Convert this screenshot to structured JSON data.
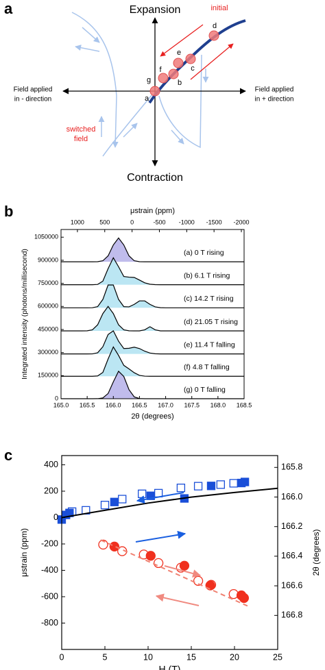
{
  "chart_data": [
    {
      "type": "schematic",
      "panel_label": "a",
      "top_label": "Expansion",
      "bottom_label": "Contraction",
      "left_label": [
        "Field applied",
        "in - direction"
      ],
      "right_label": [
        "Field applied",
        "in + direction"
      ],
      "initial_label": "initial",
      "switched_label": [
        "switched",
        "field"
      ],
      "points": [
        "a",
        "b",
        "c",
        "d",
        "e",
        "f",
        "g"
      ]
    },
    {
      "type": "profiles",
      "panel_label": "b",
      "xlabel": "2θ (degrees)",
      "x2label": "μstrain (ppm)",
      "ylabel": "Integrated intensity (photons/millisecond)",
      "xlim": [
        165,
        168.5
      ],
      "ylim": [
        0,
        1100000
      ],
      "x2lim": [
        1300,
        -2050
      ],
      "xticks": [
        {
          "value": 165,
          "label": "165.0"
        },
        165.5,
        {
          "value": 166,
          "label": "166.0"
        },
        166.5,
        {
          "value": 167,
          "label": "167.0"
        },
        167.5,
        {
          "value": 168,
          "label": "168.0"
        },
        168.5
      ],
      "x2ticks": [
        1000,
        500,
        0,
        -500,
        -1000,
        -1500,
        -2000
      ],
      "yticks": [
        0,
        150000,
        300000,
        450000,
        600000,
        750000,
        900000,
        1050000
      ],
      "x": [
        165.0,
        165.4,
        165.5,
        165.6,
        165.7,
        165.8,
        165.9,
        166.0,
        166.1,
        166.2,
        166.3,
        166.4,
        166.5,
        166.6,
        166.7,
        166.8,
        166.9,
        167.0,
        168.5
      ],
      "series": [
        {
          "name": "(a) 0 T rising",
          "color": "#000000",
          "fill": "#b9b5ea",
          "values": [
            890000,
            890000,
            890000,
            890000,
            890600,
            896800,
            928600,
            999600,
            1045000,
            999600,
            928600,
            896800,
            890600,
            890000,
            890000,
            890000,
            890000,
            890000,
            890000
          ]
        },
        {
          "name": "(b) 6.1 T rising",
          "color": "#000000",
          "fill": "#b4e3f2",
          "values": [
            741000,
            741000,
            741000,
            741000,
            742900,
            764200,
            845400,
            916300,
            857900,
            794600,
            790200,
            788300,
            771400,
            753500,
            744300,
            741600,
            741000,
            741000,
            741000
          ]
        },
        {
          "name": "(c) 14.2 T rising",
          "color": "#000000",
          "fill": "#b4e3f2",
          "values": [
            591000,
            591000,
            591000,
            591400,
            598400,
            645600,
            739200,
            739200,
            645600,
            598400,
            597000,
            613400,
            635900,
            635900,
            613400,
            597000,
            591700,
            591000,
            591000
          ]
        },
        {
          "name": "(d) 21.05 T rising",
          "color": "#000000",
          "fill": "#b4e3f2",
          "values": [
            441000,
            441000,
            441600,
            448000,
            480600,
            553400,
            600000,
            553400,
            480600,
            448000,
            441600,
            441000,
            441000,
            447800,
            468000,
            447800,
            441000,
            441000,
            441000
          ]
        },
        {
          "name": "(e) 11.4 T falling",
          "color": "#000000",
          "fill": "#b4e3f2",
          "values": [
            291000,
            291000,
            291000,
            291500,
            298600,
            338000,
            417500,
            441600,
            373900,
            326400,
            327900,
            335000,
            326200,
            309000,
            296900,
            292300,
            291000,
            291000,
            291000
          ]
        },
        {
          "name": "(f) 4.8 T falling",
          "color": "#000000",
          "fill": "#b4e3f2",
          "values": [
            146000,
            146000,
            146000,
            146000,
            148000,
            171000,
            258300,
            336700,
            281200,
            216900,
            193900,
            168900,
            151700,
            146700,
            146000,
            146000,
            146000,
            146000,
            146000
          ]
        },
        {
          "name": "(g) 0 T falling",
          "color": "#000000",
          "fill": "#b9b5ea",
          "values": [
            0,
            0,
            0,
            0,
            400,
            5200,
            33700,
            109900,
            178500,
            144800,
            58800,
            11900,
            1200,
            0,
            0,
            0,
            0,
            0,
            0
          ]
        }
      ]
    },
    {
      "type": "scatter",
      "panel_label": "c",
      "xlabel": "H (T)",
      "ylabel": "μstrain (ppm)",
      "y2label": "2θ (degrees)",
      "xlim": [
        0,
        25
      ],
      "ylim": [
        -1000,
        470
      ],
      "y2lim": [
        167.03,
        165.72
      ],
      "xticks": [
        0,
        5,
        10,
        15,
        20,
        25
      ],
      "yticks": [
        400,
        200,
        0,
        -200,
        -400,
        -600,
        -800
      ],
      "y2ticks": [
        165.8,
        {
          "value": 166,
          "label": "166.0"
        },
        166.2,
        166.4,
        166.6,
        166.8
      ],
      "series": [
        {
          "marker": "square",
          "filled": true,
          "color": "#1a4fd8",
          "x": [
            0,
            0.5,
            0.9,
            6.1,
            10.3,
            14.2,
            17.3,
            20.8,
            21.2
          ],
          "values": [
            -15,
            20,
            35,
            118,
            165,
            145,
            240,
            262,
            270
          ]
        },
        {
          "marker": "square",
          "filled": false,
          "color": "#1a4fd8",
          "x": [
            1.2,
            2.8,
            5,
            7,
            9.3,
            11.2,
            13.8,
            15.8,
            18.4,
            19.9
          ],
          "values": [
            45,
            55,
            95,
            140,
            180,
            185,
            225,
            238,
            250,
            260
          ]
        },
        {
          "marker": "line",
          "dash": false,
          "color": "#000000",
          "x": [
            0,
            5,
            10,
            15,
            20,
            25
          ],
          "values": [
            0,
            55,
            110,
            155,
            190,
            222
          ]
        },
        {
          "marker": "circle",
          "filled": true,
          "color": "#f0301e",
          "x": [
            6.1,
            10.3,
            14.2,
            17.2,
            20.8,
            21.1
          ],
          "values": [
            -220,
            -290,
            -365,
            -515,
            -590,
            -610
          ]
        },
        {
          "marker": "circle",
          "filled": false,
          "color": "#f0301e",
          "x": [
            4.8,
            7,
            9.5,
            11.2,
            13.8,
            15.8,
            17.3,
            19.9
          ],
          "values": [
            -205,
            -255,
            -280,
            -345,
            -380,
            -480,
            -510,
            -580
          ]
        },
        {
          "marker": "line",
          "dash": true,
          "color": "#f08070",
          "x": [
            4.5,
            21.5
          ],
          "values": [
            -170,
            -670
          ]
        }
      ]
    }
  ]
}
